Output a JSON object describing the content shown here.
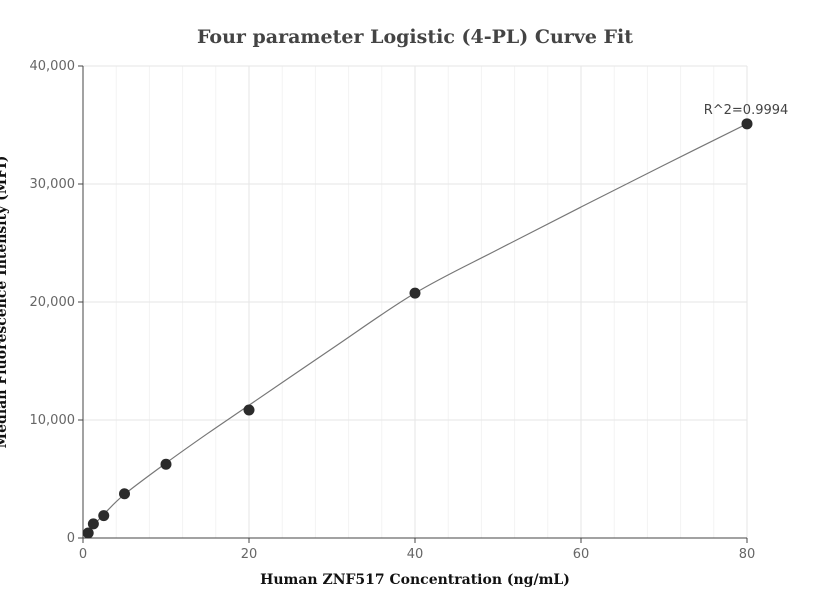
{
  "chart_data": {
    "type": "scatter",
    "title": "Four parameter Logistic (4-PL) Curve Fit",
    "xlabel": "Human ZNF517 Concentration (ng/mL)",
    "ylabel": "Median Fluorescence Intensity (MFI)",
    "xlim": [
      0,
      80
    ],
    "ylim": [
      0,
      40000
    ],
    "x_ticks": [
      0,
      20,
      40,
      60,
      80
    ],
    "x_tick_labels": [
      "0",
      "20",
      "40",
      "60",
      "80"
    ],
    "y_ticks": [
      0,
      10000,
      20000,
      30000,
      40000
    ],
    "y_tick_labels": [
      "0",
      "10,000",
      "20,000",
      "30,000",
      "40,000"
    ],
    "grid": true,
    "points": {
      "x": [
        0.625,
        1.25,
        2.5,
        5,
        10,
        20,
        40,
        80
      ],
      "y": [
        420,
        1200,
        1900,
        3750,
        6250,
        10850,
        20750,
        35100
      ]
    },
    "fit_curve": {
      "x": [
        0.625,
        2.5,
        5,
        10,
        15,
        20,
        30,
        40,
        50,
        60,
        70,
        80
      ],
      "y": [
        600,
        2000,
        3700,
        6350,
        8850,
        11250,
        16050,
        20750,
        24450,
        28050,
        31600,
        35100
      ]
    },
    "annotation": "R^2=0.9994"
  }
}
